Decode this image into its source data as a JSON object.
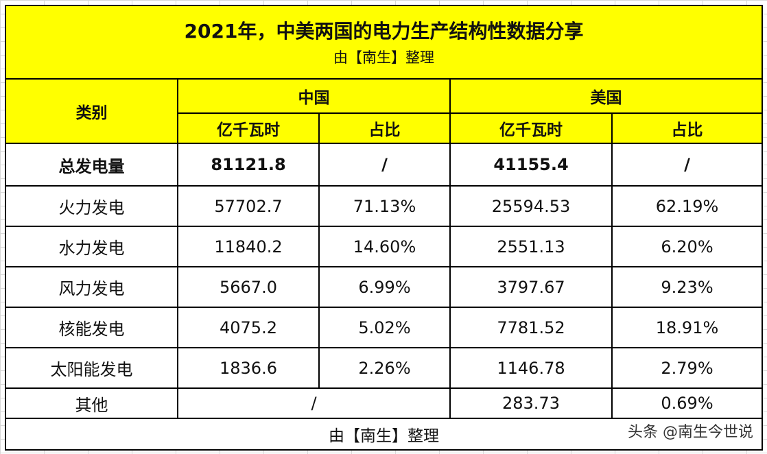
{
  "title": "2021年，中美两国的电力生产结构性数据分享",
  "subtitle": "由【南生】整理",
  "header": {
    "category": "类别",
    "china": "中国",
    "usa": "美国",
    "unit": "亿千瓦时",
    "share": "占比"
  },
  "rows": [
    {
      "label": "总发电量",
      "cn_value": "81121.8",
      "cn_share": "/",
      "us_value": "41155.4",
      "us_share": "/"
    },
    {
      "label": "火力发电",
      "cn_value": "57702.7",
      "cn_share": "71.13%",
      "us_value": "25594.53",
      "us_share": "62.19%"
    },
    {
      "label": "水力发电",
      "cn_value": "11840.2",
      "cn_share": "14.60%",
      "us_value": "2551.13",
      "us_share": "6.20%"
    },
    {
      "label": "风力发电",
      "cn_value": "5667.0",
      "cn_share": "6.99%",
      "us_value": "3797.67",
      "us_share": "9.23%"
    },
    {
      "label": "核能发电",
      "cn_value": "4075.2",
      "cn_share": "5.02%",
      "us_value": "7781.52",
      "us_share": "18.91%"
    },
    {
      "label": "太阳能发电",
      "cn_value": "1836.6",
      "cn_share": "2.26%",
      "us_value": "1146.78",
      "us_share": "2.79%"
    }
  ],
  "other_row": {
    "label": "其他",
    "cn_merged": "/",
    "us_value": "283.73",
    "us_share": "0.69%"
  },
  "footer": "由【南生】整理",
  "watermark": "头条 @南生今世说",
  "colors": {
    "header_bg": "#ffff00",
    "border": "#000000"
  }
}
